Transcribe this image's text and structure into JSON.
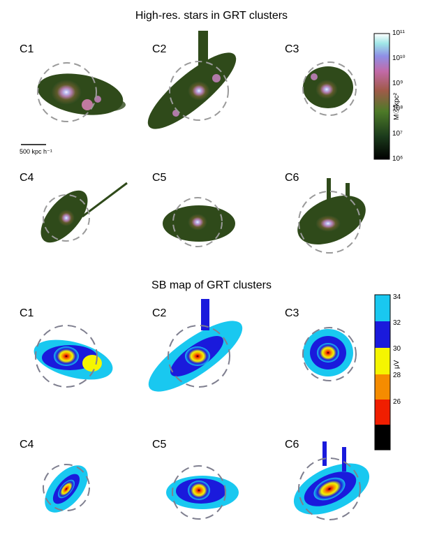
{
  "top_section": {
    "title": "High-res. stars in GRT clusters",
    "panels": [
      "C1",
      "C2",
      "C3",
      "C4",
      "C5",
      "C6"
    ],
    "colorbar": {
      "unit": "M☉/kpc²",
      "ticks": [
        "10¹¹",
        "10¹⁰",
        "10⁹",
        "10⁸",
        "10⁷",
        "10⁶"
      ]
    },
    "scalebar_label": "500 kpc h⁻¹"
  },
  "bottom_section": {
    "title": "SB map of GRT clusters",
    "panels": [
      "C1",
      "C2",
      "C3",
      "C4",
      "C5",
      "C6"
    ],
    "colorbar": {
      "unit": "μV",
      "ticks": [
        "34",
        "32",
        "30",
        "28",
        "26"
      ],
      "colors": [
        "#19c8f0",
        "#1a1adc",
        "#f5f500",
        "#f58c00",
        "#f01e00",
        "#000000"
      ]
    }
  }
}
